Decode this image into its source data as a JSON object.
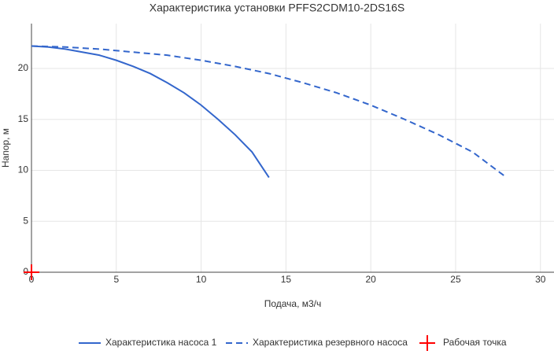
{
  "chart_data": {
    "type": "line",
    "title": "Характеристика установки PFFS2CDM10-2DS16S",
    "x_label": "Подача, м3/ч",
    "y_label": "Напор, м",
    "xlim": [
      0,
      30.8
    ],
    "ylim": [
      0,
      24.4
    ],
    "xticks": [
      0,
      5,
      10,
      15,
      20,
      25,
      30
    ],
    "yticks": [
      0,
      5,
      10,
      15,
      20
    ],
    "grid": true,
    "legend": "bottom",
    "series": [
      {
        "name": "Характеристика насоса 1",
        "color": "#3366cc",
        "style": "solid",
        "x": [
          0,
          1,
          2,
          3,
          4,
          5,
          6,
          7,
          8,
          9,
          10,
          11,
          12,
          13,
          14
        ],
        "values": [
          22.2,
          22.1,
          21.9,
          21.6,
          21.3,
          20.8,
          20.2,
          19.5,
          18.6,
          17.6,
          16.4,
          15.0,
          13.5,
          11.8,
          9.3
        ]
      },
      {
        "name": "Характеристика резервного насоса",
        "color": "#3366cc",
        "style": "dashed",
        "x": [
          0,
          2,
          4,
          6,
          8,
          10,
          12,
          14,
          16,
          18,
          20,
          22,
          24,
          26,
          28
        ],
        "values": [
          22.2,
          22.1,
          21.9,
          21.6,
          21.3,
          20.8,
          20.2,
          19.5,
          18.6,
          17.6,
          16.4,
          15.0,
          13.5,
          11.8,
          9.3
        ]
      },
      {
        "name": "Рабочая точка",
        "color": "#ff0000",
        "style": "cross",
        "x": [
          0
        ],
        "values": [
          0
        ]
      }
    ]
  }
}
